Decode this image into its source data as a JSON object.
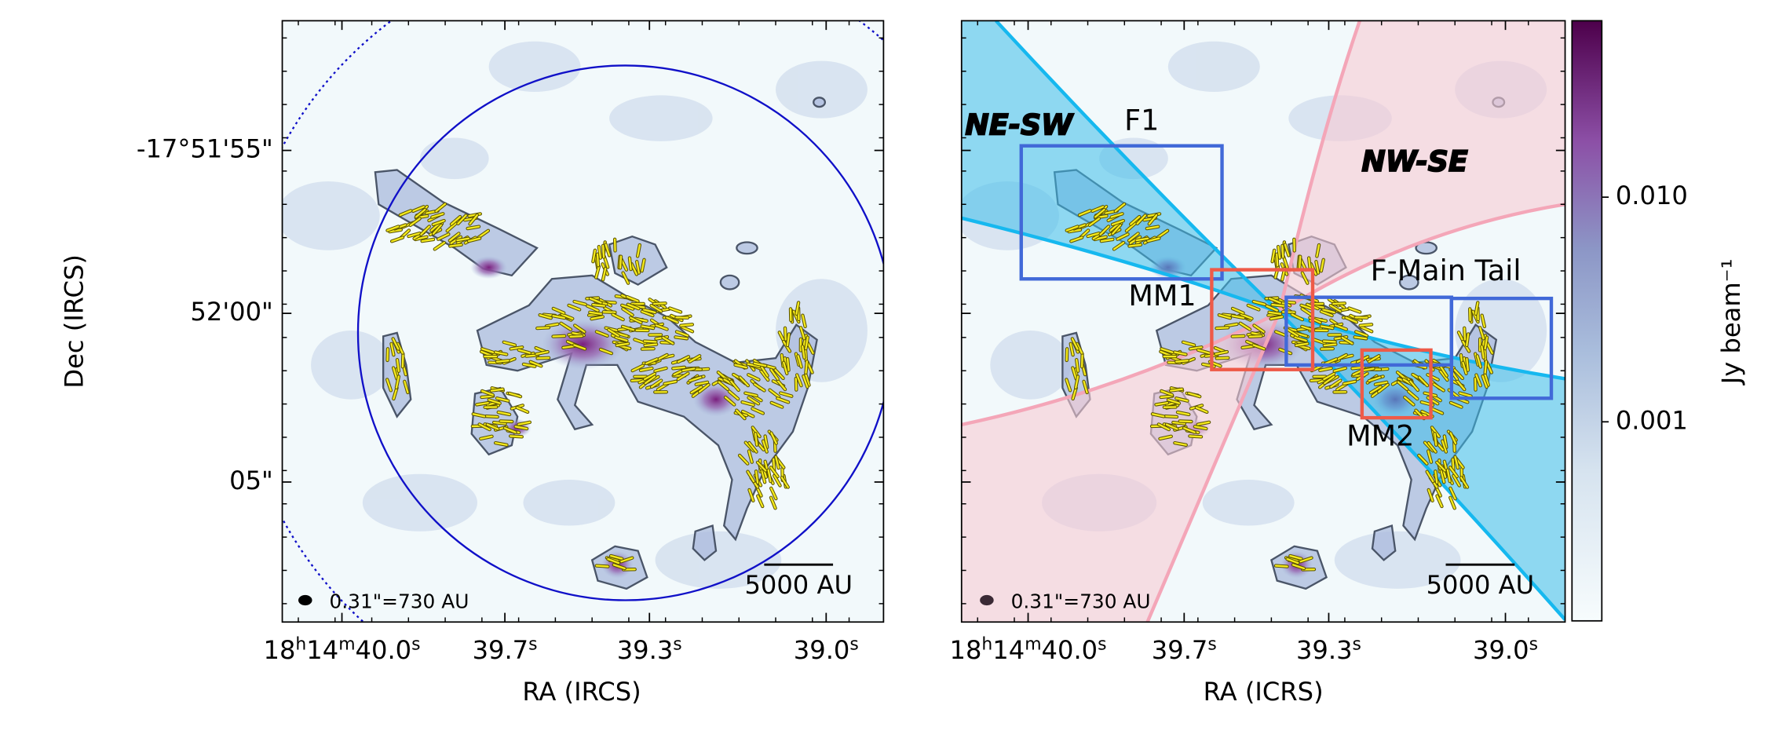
{
  "figure": {
    "panels": [
      {
        "x_label": "RA (IRCS)",
        "y_label": "Dec (IRCS)",
        "x_ticks": [
          "18h14m40.0s",
          "39.7s",
          "39.3s",
          "39.0s"
        ],
        "y_ticks": [
          "-17°51'55\"",
          "52'00\"",
          "05\""
        ],
        "beam_label": "0.31\"=730 AU",
        "scale_bar": "5000 AU"
      },
      {
        "x_label": "RA (ICRS)",
        "x_ticks": [
          "18h14m40.0s",
          "39.7s",
          "39.3s",
          "39.0s"
        ],
        "beam_label": "0.31\"=730 AU",
        "scale_bar": "5000 AU",
        "annotations": {
          "ne_sw": "NE-SW",
          "nw_se": "NW-SE",
          "f1": "F1",
          "mm1": "MM1",
          "f_main_tail": "F-Main Tail",
          "mm2": "MM2"
        }
      }
    ],
    "colorbar": {
      "label": "Jy beam⁻¹",
      "log": true,
      "lim": [
        0.00013,
        0.061
      ],
      "ticks": [
        {
          "value": 0.01,
          "label": "0.010"
        },
        {
          "value": 0.001,
          "label": "0.001"
        }
      ]
    }
  }
}
